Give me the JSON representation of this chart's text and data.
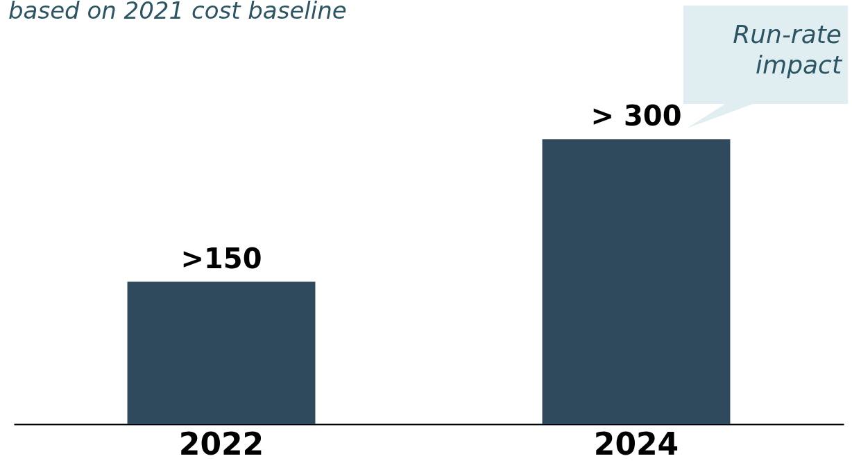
{
  "chart_data": {
    "type": "bar",
    "title": "based on 2021 cost baseline",
    "categories": [
      "2022",
      "2024"
    ],
    "values": [
      150,
      300
    ],
    "value_labels": [
      ">150",
      "> 300"
    ],
    "color": "#2e4a5c",
    "annotations": [
      "Run-rate impact"
    ]
  }
}
